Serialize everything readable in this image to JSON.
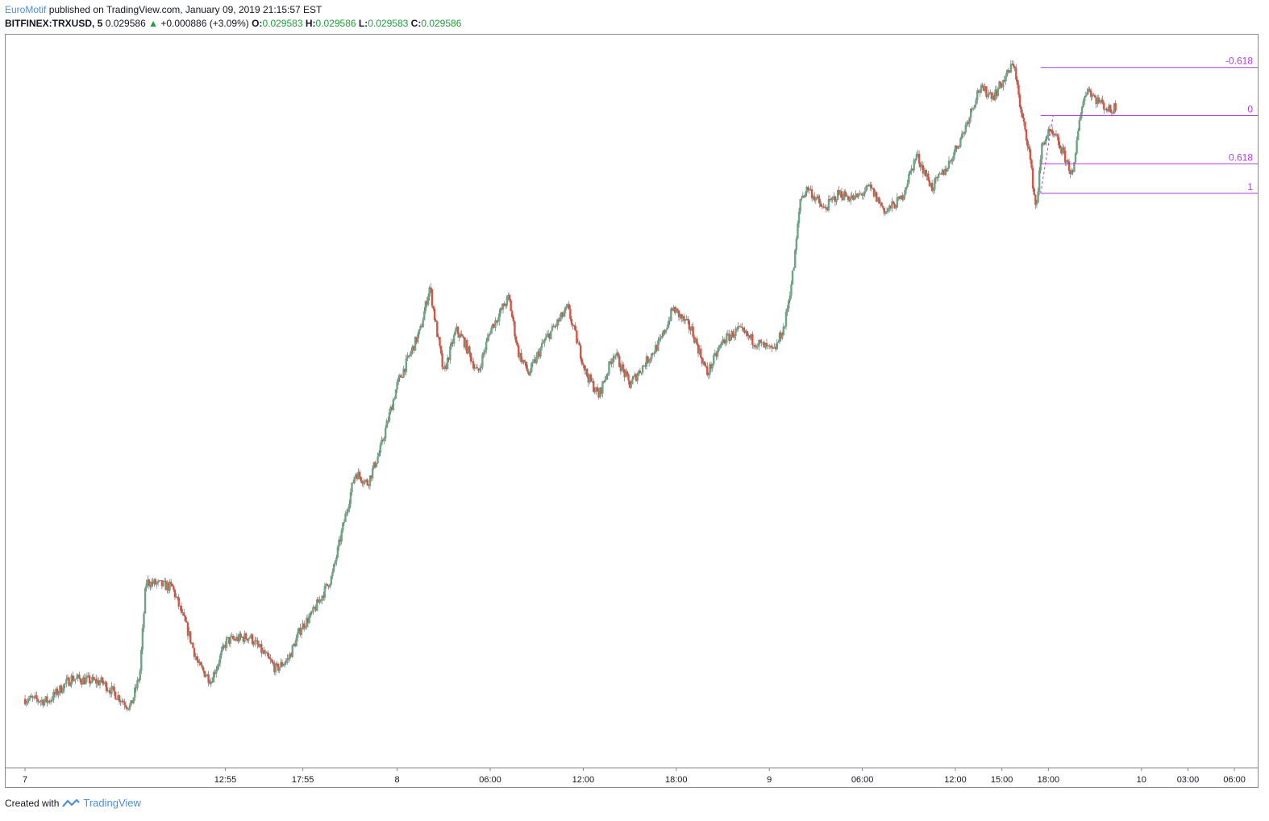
{
  "header": {
    "author": "EuroMotif",
    "published_text": "published on TradingView.com, January 09, 2019 21:15:57 EST",
    "symbol": "BITFINEX:TRXUSD, 5",
    "last_price": "0.029586",
    "change_arrow": "▲",
    "change": "+0.000886 (+3.09%)",
    "o_label": "O:",
    "o_value": "0.029583",
    "h_label": "H:",
    "h_value": "0.029586",
    "l_label": "L:",
    "l_value": "0.029583",
    "c_label": "C:",
    "c_value": "0.029586"
  },
  "footer": {
    "created_with": "Created with",
    "brand": "TradingView"
  },
  "colors": {
    "up": "#6ba583",
    "down": "#d75442",
    "fib": "#b03ee0",
    "brand": "#4a90d9"
  },
  "chart_data": {
    "type": "candlestick",
    "symbol": "BITFINEX:TRXUSD",
    "interval_minutes": 5,
    "x_ticks": [
      "7",
      "12:55",
      "17:55",
      "8",
      "06:00",
      "12:00",
      "18:00",
      "9",
      "06:00",
      "12:00",
      "15:00",
      "18:00",
      "10",
      "03:00",
      "06:00"
    ],
    "x_tick_times": [
      0,
      12.917,
      17.917,
      24,
      30,
      36,
      42,
      48,
      54,
      60,
      63,
      66,
      72,
      75,
      78
    ],
    "x_range_hours": [
      -1.25,
      79.5
    ],
    "y_range": [
      0.023,
      0.0297
    ],
    "price_path": [
      [
        0.0,
        0.02363
      ],
      [
        1.5,
        0.02361
      ],
      [
        3.0,
        0.02382
      ],
      [
        5.0,
        0.02378
      ],
      [
        6.8,
        0.02355
      ],
      [
        7.4,
        0.02385
      ],
      [
        7.8,
        0.0247
      ],
      [
        9.5,
        0.02465
      ],
      [
        10.5,
        0.02425
      ],
      [
        11.2,
        0.02393
      ],
      [
        12.0,
        0.0238
      ],
      [
        13.0,
        0.02416
      ],
      [
        14.5,
        0.0242
      ],
      [
        16.2,
        0.0239
      ],
      [
        17.0,
        0.024
      ],
      [
        17.8,
        0.02428
      ],
      [
        18.5,
        0.0244
      ],
      [
        19.8,
        0.02475
      ],
      [
        20.5,
        0.0252
      ],
      [
        21.3,
        0.0257
      ],
      [
        22.1,
        0.0256
      ],
      [
        22.9,
        0.0259
      ],
      [
        24.0,
        0.0265
      ],
      [
        25.5,
        0.027
      ],
      [
        26.1,
        0.0274
      ],
      [
        27.0,
        0.0266
      ],
      [
        27.8,
        0.027
      ],
      [
        28.3,
        0.0269
      ],
      [
        29.2,
        0.0266
      ],
      [
        30.0,
        0.027
      ],
      [
        31.2,
        0.0273
      ],
      [
        31.8,
        0.0268
      ],
      [
        32.5,
        0.0266
      ],
      [
        33.5,
        0.0269
      ],
      [
        35.0,
        0.0272
      ],
      [
        36.2,
        0.0266
      ],
      [
        37.0,
        0.0264
      ],
      [
        38.0,
        0.0268
      ],
      [
        39.0,
        0.0265
      ],
      [
        40.0,
        0.0267
      ],
      [
        41.0,
        0.0269
      ],
      [
        41.8,
        0.0272
      ],
      [
        43.0,
        0.027
      ],
      [
        44.0,
        0.0266
      ],
      [
        45.0,
        0.0269
      ],
      [
        46.0,
        0.027
      ],
      [
        47.0,
        0.0269
      ],
      [
        48.3,
        0.0268
      ],
      [
        49.0,
        0.02705
      ],
      [
        49.6,
        0.0276
      ],
      [
        50.0,
        0.0282
      ],
      [
        50.5,
        0.0283
      ],
      [
        51.5,
        0.0281
      ],
      [
        52.5,
        0.02825
      ],
      [
        53.5,
        0.0282
      ],
      [
        54.5,
        0.0283
      ],
      [
        55.5,
        0.02808
      ],
      [
        56.5,
        0.0282
      ],
      [
        57.5,
        0.0286
      ],
      [
        58.5,
        0.0283
      ],
      [
        59.5,
        0.0285
      ],
      [
        60.5,
        0.0288
      ],
      [
        61.5,
        0.0292
      ],
      [
        62.5,
        0.02915
      ],
      [
        63.2,
        0.0293
      ],
      [
        63.8,
        0.02945
      ],
      [
        64.2,
        0.029
      ],
      [
        64.7,
        0.0287
      ],
      [
        65.2,
        0.0281
      ],
      [
        65.6,
        0.0287
      ],
      [
        66.0,
        0.0288
      ],
      [
        66.5,
        0.02875
      ],
      [
        67.0,
        0.0286
      ],
      [
        67.6,
        0.0284
      ],
      [
        68.0,
        0.02895
      ],
      [
        68.5,
        0.02922
      ],
      [
        69.0,
        0.02912
      ],
      [
        69.6,
        0.02905
      ],
      [
        70.0,
        0.029
      ],
      [
        70.4,
        0.02906
      ]
    ],
    "fib_levels": [
      {
        "label": "-0.618",
        "price": 0.0294
      },
      {
        "label": "0",
        "price": 0.02896
      },
      {
        "label": "0.618",
        "price": 0.02852
      },
      {
        "label": "1",
        "price": 0.02825
      }
    ],
    "fib_start_hour": 65.5,
    "fib_anchor": {
      "from_hour": 65.5,
      "from_price": 0.02825,
      "to_hour": 66.3,
      "to_price": 0.02896
    }
  }
}
